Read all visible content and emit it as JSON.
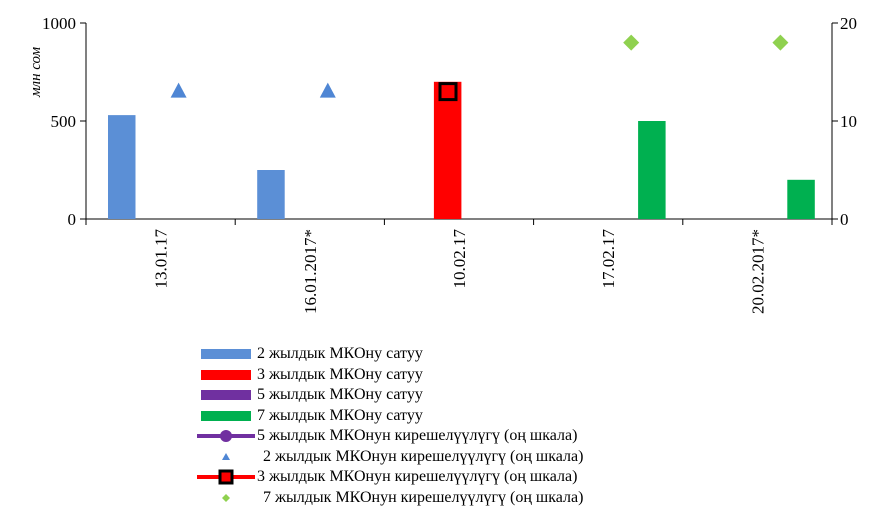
{
  "chart_data": {
    "type": "bar",
    "categories": [
      "13.01.17",
      "16.01.2017*",
      "10.02.17",
      "17.02.17",
      "20.02.2017*"
    ],
    "ylabel": "млн сом",
    "ylim": [
      0,
      1000
    ],
    "yticks": [
      "0",
      "500",
      "1000"
    ],
    "y2lim": [
      0,
      20
    ],
    "y2ticks": [
      "0",
      "10",
      "20"
    ],
    "grid": false,
    "legend_position": "bottom",
    "bar_series": [
      {
        "name": "2 жылдык МКОну сатуу",
        "color": "#5b8fd6",
        "values": [
          530,
          250,
          null,
          null,
          null
        ]
      },
      {
        "name": "3 жылдык МКОну сатуу",
        "color": "#ff0000",
        "values": [
          null,
          null,
          700,
          null,
          null
        ]
      },
      {
        "name": "5 жылдык МКОну сатуу",
        "color": "#7030a0",
        "values": [
          null,
          null,
          null,
          null,
          null
        ]
      },
      {
        "name": "7 жылдык МКОну сатуу",
        "color": "#00b050",
        "values": [
          null,
          null,
          null,
          500,
          200
        ]
      }
    ],
    "marker_series": [
      {
        "name": "5 жылдык МКОнун кирешелүүлүгү (оң шкала)",
        "color": "#7030a0",
        "marker": "line-circle",
        "values": [
          null,
          null,
          null,
          null,
          null
        ]
      },
      {
        "name": "2 жылдык МКОнун кирешелүүлүгү (оң шкала)",
        "color": "#4f86d4",
        "marker": "triangle",
        "values": [
          13.1,
          13.1,
          null,
          null,
          null
        ]
      },
      {
        "name": "3 жылдык МКОнун кирешелүүлүгү (оң шкала)",
        "color": "#ff0000",
        "marker": "line-square",
        "values": [
          null,
          null,
          13.0,
          null,
          null
        ]
      },
      {
        "name": "7 жылдык МКОнун кирешелүүлүгү (оң шкала)",
        "color": "#8fd14f",
        "marker": "diamond",
        "values": [
          null,
          null,
          null,
          18.0,
          18.0
        ]
      }
    ]
  }
}
